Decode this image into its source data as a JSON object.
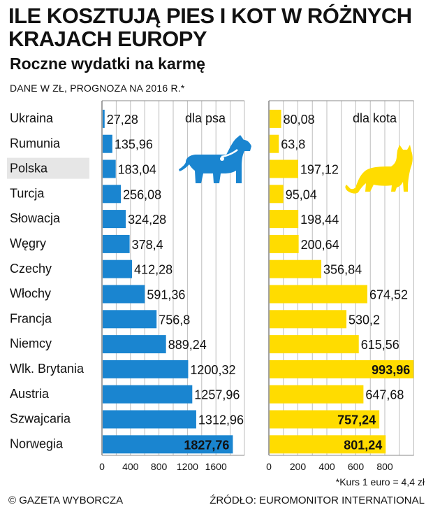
{
  "header": {
    "title": "ILE KOSZTUJĄ PIES I KOT W RÓŻNYCH KRAJACH EUROPY",
    "subtitle": "Roczne wydatki na karmę",
    "note": "DANE W ZŁ, PROGNOZA NA 2016 R.*"
  },
  "footer": {
    "footnote": "*Kurs 1 euro = 4,4 zł",
    "copyright": "© GAZETA WYBORCZA",
    "source": "ŹRÓDŁO: EUROMONITOR INTERNATIONAL"
  },
  "colors": {
    "dog": "#1a85d0",
    "cat": "#ffdc00",
    "highlight": "#e6e6e6",
    "grid": "#bdbdbd"
  },
  "icons": {
    "dog": "dog-icon",
    "cat": "cat-icon"
  },
  "chart_data": [
    {
      "type": "bar",
      "orientation": "horizontal",
      "panel_label": "dla psa",
      "categories": [
        "Ukraina",
        "Rumunia",
        "Polska",
        "Turcja",
        "Słowacja",
        "Węgry",
        "Czechy",
        "Włochy",
        "Francja",
        "Niemcy",
        "Wlk. Brytania",
        "Austria",
        "Szwajcaria",
        "Norwegia"
      ],
      "highlight_category": "Polska",
      "values": [
        27.28,
        135.96,
        183.04,
        256.08,
        324.28,
        378.4,
        412.28,
        591.36,
        756.8,
        889.24,
        1200.32,
        1257.96,
        1312.96,
        1827.76
      ],
      "value_labels": [
        "27,28",
        "135,96",
        "183,04",
        "256,08",
        "324,28",
        "378,4",
        "412,28",
        "591,36",
        "756,8",
        "889,24",
        "1200,32",
        "1257,96",
        "1312,96",
        "1827,76"
      ],
      "xlim": [
        0,
        2000
      ],
      "xticks": [
        0,
        400,
        800,
        1200,
        1600
      ],
      "grid": true
    },
    {
      "type": "bar",
      "orientation": "horizontal",
      "panel_label": "dla kota",
      "categories": [
        "Ukraina",
        "Rumunia",
        "Polska",
        "Turcja",
        "Słowacja",
        "Węgry",
        "Czechy",
        "Włochy",
        "Francja",
        "Niemcy",
        "Wlk. Brytania",
        "Austria",
        "Szwajcaria",
        "Norwegia"
      ],
      "highlight_category": "Polska",
      "values": [
        80.08,
        63.8,
        197.12,
        95.04,
        198.44,
        200.64,
        356.84,
        674.52,
        530.2,
        615.56,
        993.96,
        647.68,
        757.24,
        801.24
      ],
      "value_labels": [
        "80,08",
        "63,8",
        "197,12",
        "95,04",
        "198,44",
        "200,64",
        "356,84",
        "674,52",
        "530,2",
        "615,56",
        "993,96",
        "647,68",
        "757,24",
        "801,24"
      ],
      "xlim": [
        0,
        1000
      ],
      "xticks": [
        0,
        200,
        400,
        600,
        800
      ],
      "grid": true
    }
  ]
}
